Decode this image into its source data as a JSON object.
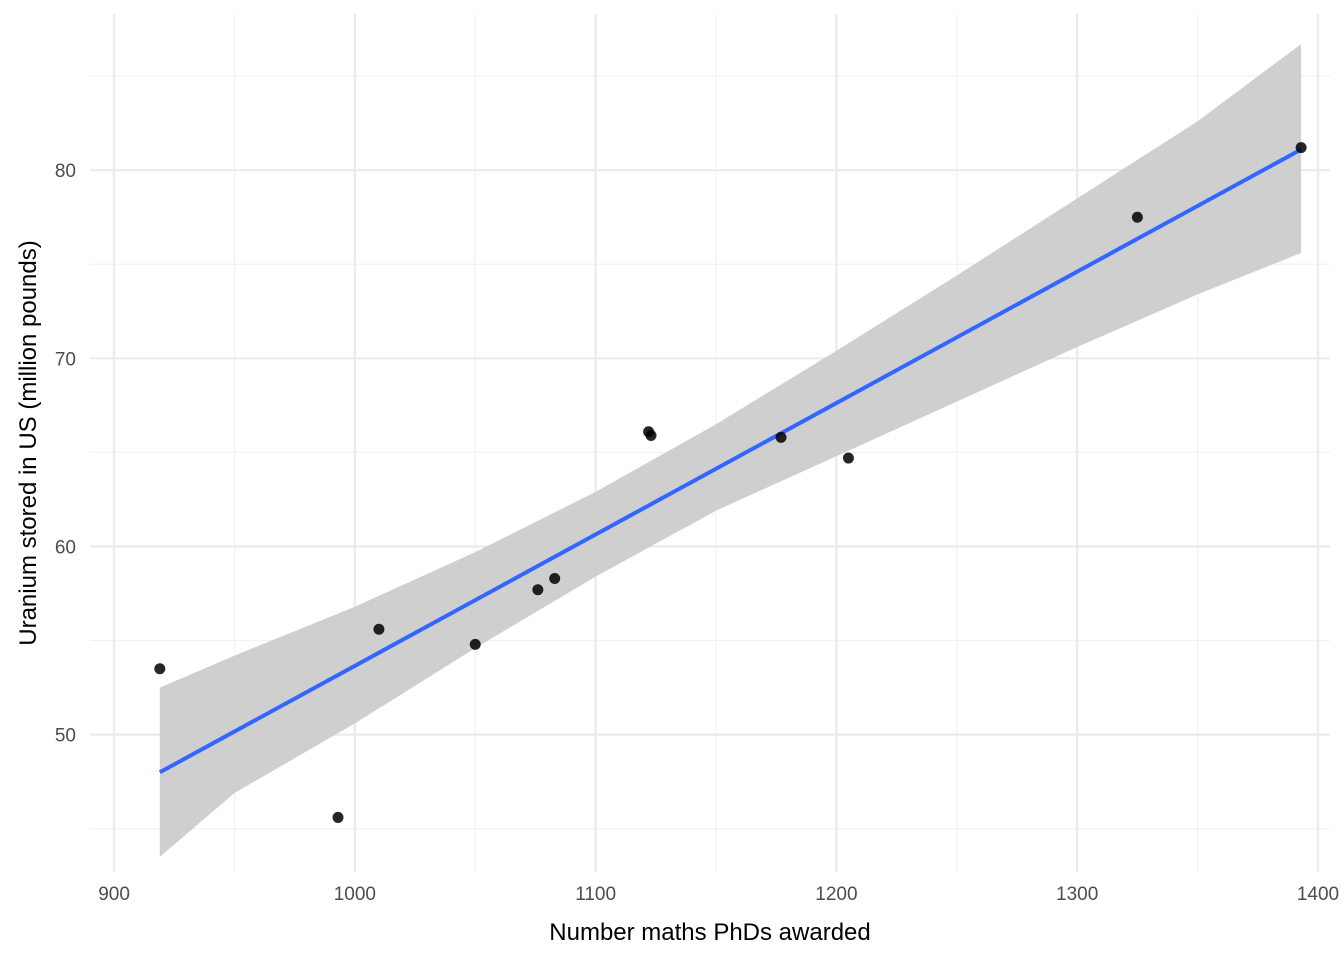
{
  "chart_data": {
    "type": "scatter",
    "title": "",
    "xlabel": "Number maths PhDs awarded",
    "ylabel": "Uranium stored in US (million pounds)",
    "xlim": [
      890,
      1405
    ],
    "ylim": [
      42.7,
      88.3
    ],
    "x_ticks": [
      900,
      1000,
      1100,
      1200,
      1300,
      1400
    ],
    "y_ticks": [
      50,
      60,
      70,
      80
    ],
    "x_minor": [
      950,
      1050,
      1150,
      1250,
      1350
    ],
    "y_minor": [
      45,
      55,
      65,
      75,
      85
    ],
    "grid": true,
    "points": [
      {
        "x": 919,
        "y": 53.5
      },
      {
        "x": 993,
        "y": 45.6
      },
      {
        "x": 1010,
        "y": 55.6
      },
      {
        "x": 1050,
        "y": 54.8
      },
      {
        "x": 1076,
        "y": 57.7
      },
      {
        "x": 1083,
        "y": 58.3
      },
      {
        "x": 1122,
        "y": 66.1
      },
      {
        "x": 1123,
        "y": 65.9
      },
      {
        "x": 1177,
        "y": 65.8
      },
      {
        "x": 1205,
        "y": 64.7
      },
      {
        "x": 1325,
        "y": 77.5
      },
      {
        "x": 1393,
        "y": 81.2
      }
    ],
    "fit_line": {
      "x": [
        919,
        1393
      ],
      "y": [
        48.0,
        81.1
      ]
    },
    "confidence_band": {
      "x": [
        919,
        950,
        1000,
        1050,
        1100,
        1150,
        1200,
        1250,
        1300,
        1350,
        1393
      ],
      "lower": [
        43.5,
        46.9,
        50.6,
        54.6,
        58.4,
        61.9,
        64.8,
        67.7,
        70.6,
        73.4,
        75.6
      ],
      "upper": [
        52.5,
        54.2,
        56.8,
        59.7,
        62.9,
        66.5,
        70.4,
        74.4,
        78.5,
        82.6,
        86.7
      ]
    },
    "colors": {
      "points": "#000000",
      "fit_line": "#3366ff",
      "band": "#cccccc",
      "grid_major": "#ebebeb",
      "grid_minor": "#f2f2f2"
    }
  }
}
